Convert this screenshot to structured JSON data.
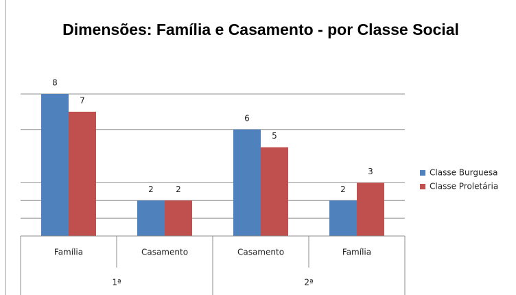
{
  "chart_data": {
    "type": "bar",
    "title": "Dimensões: Família e Casamento - por Classe Social",
    "categories": [
      "Família",
      "Casamento",
      "Casamento",
      "Família"
    ],
    "groups": [
      "1ª",
      "2ª"
    ],
    "series": [
      {
        "name": "Classe Burguesa",
        "color": "#4f81bd",
        "values": [
          8,
          2,
          6,
          2
        ]
      },
      {
        "name": "Classe Proletária",
        "color": "#c0504d",
        "values": [
          7,
          2,
          5,
          3
        ]
      }
    ],
    "ylim": [
      0,
      8
    ],
    "ygrid": [
      1,
      2,
      3,
      6,
      8
    ],
    "legend": "right"
  }
}
